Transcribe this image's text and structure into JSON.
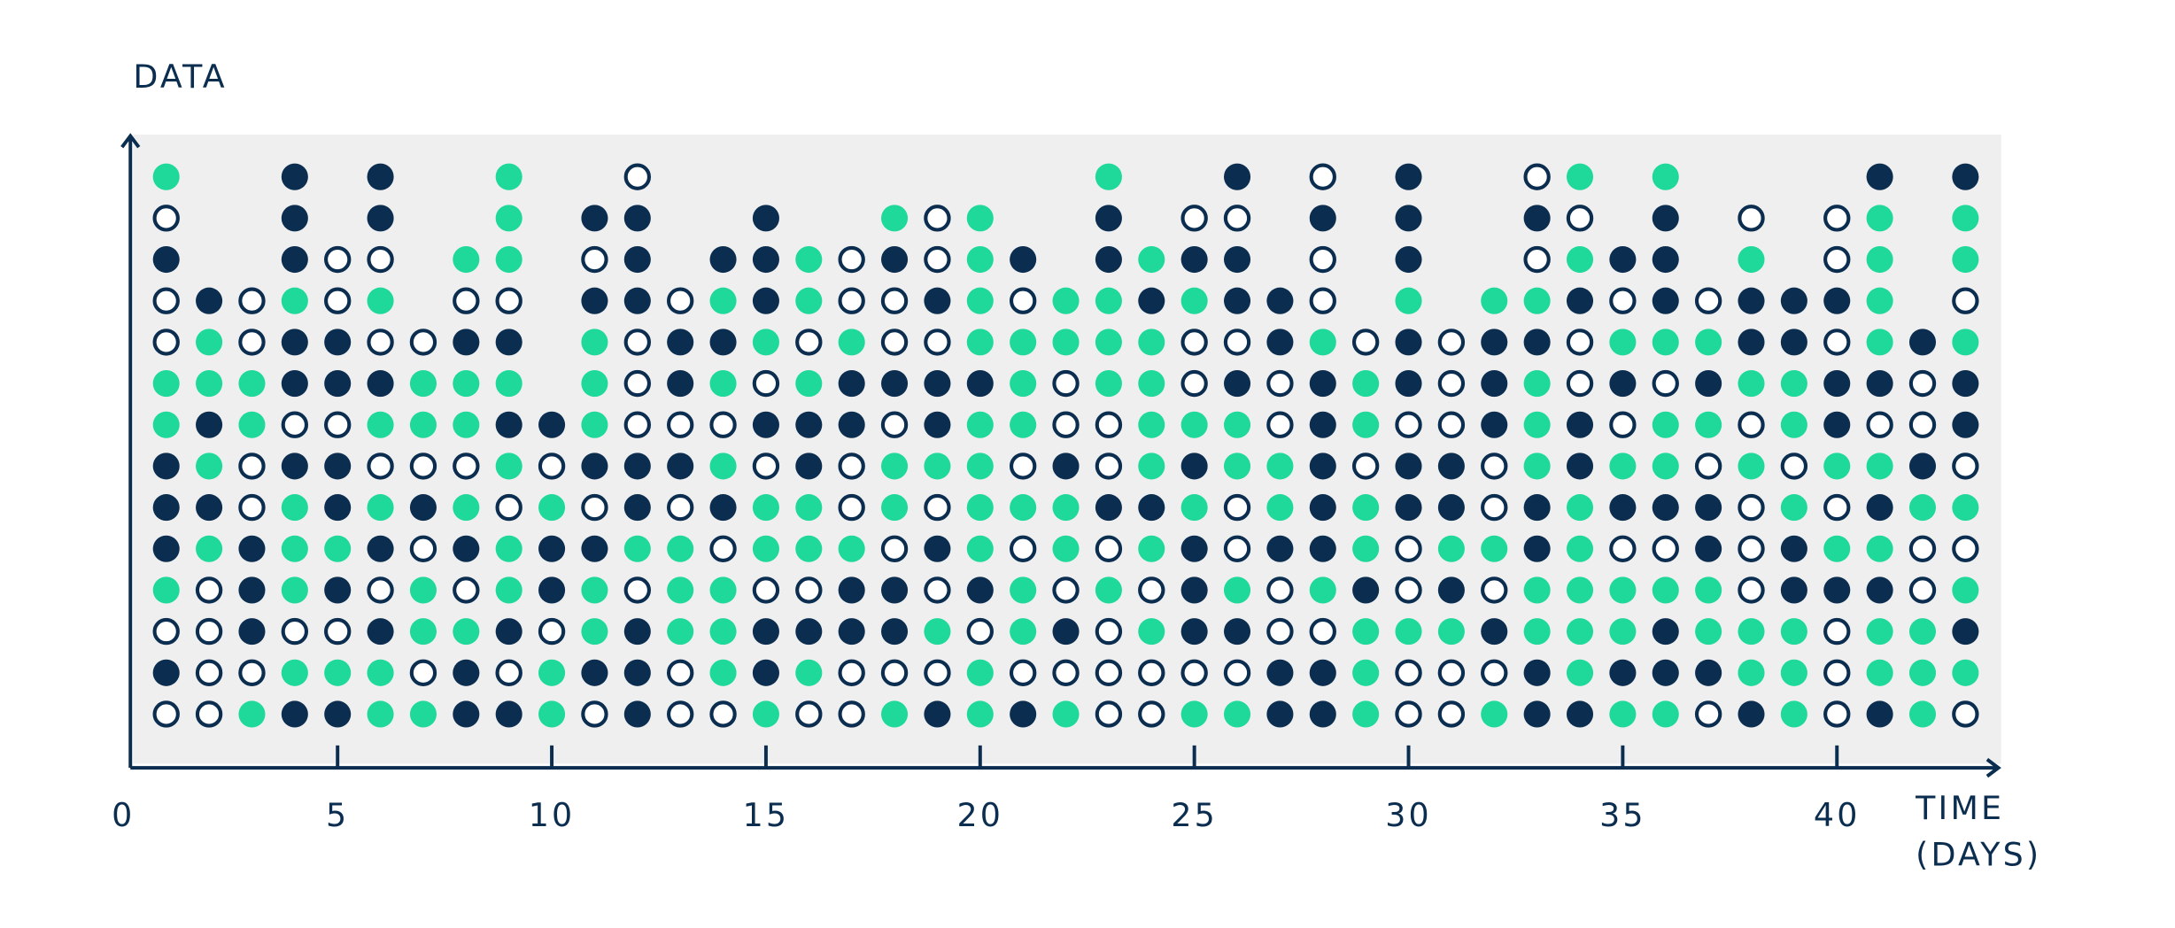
{
  "chart_data": {
    "type": "dot",
    "y_label": "DATA",
    "x_label": [
      "TIME",
      "(DAYS)"
    ],
    "xlim": [
      0,
      43.8
    ],
    "ylim": [
      -0.3,
      15
    ],
    "xticks": [
      0,
      5,
      10,
      15,
      20,
      25,
      30,
      35,
      40
    ],
    "background": "#efefef",
    "axis_color": "#0b2d4f",
    "series": [
      {
        "color": "#1ed99a",
        "filled": true,
        "x": [
          1,
          1,
          1,
          1,
          2,
          2,
          2,
          2,
          3,
          3,
          3,
          4,
          4,
          4,
          4,
          4,
          5,
          5,
          6,
          6,
          6,
          6,
          6,
          7,
          7,
          7,
          7,
          7,
          8,
          8,
          8,
          8,
          8,
          9,
          9,
          9,
          9,
          9,
          9,
          9,
          10,
          10,
          10,
          11,
          11,
          11,
          11,
          11,
          12,
          13,
          13,
          13,
          14,
          14,
          14,
          14,
          14,
          14,
          15,
          15,
          15,
          15,
          16,
          16,
          16,
          16,
          16,
          16,
          17,
          17,
          18,
          18,
          18,
          18,
          19,
          19,
          20,
          20,
          20,
          20,
          20,
          20,
          20,
          20,
          20,
          20,
          21,
          21,
          21,
          21,
          21,
          21,
          22,
          22,
          22,
          22,
          22,
          23,
          23,
          23,
          23,
          23,
          24,
          24,
          24,
          24,
          24,
          24,
          24,
          25,
          25,
          25,
          25,
          26,
          26,
          26,
          26,
          27,
          27,
          28,
          28,
          29,
          29,
          29,
          29,
          29,
          29,
          29,
          30,
          30,
          31,
          31,
          32,
          32,
          32,
          33,
          33,
          33,
          33,
          33,
          33,
          34,
          34,
          34,
          34,
          34,
          34,
          34,
          35,
          35,
          35,
          35,
          35,
          36,
          36,
          36,
          36,
          36,
          36,
          37,
          37,
          37,
          37,
          38,
          38,
          38,
          38,
          38,
          39,
          39,
          39,
          39,
          39,
          39,
          40,
          40,
          41,
          41,
          41,
          41,
          41,
          41,
          41,
          41,
          42,
          42,
          42,
          42,
          43,
          43,
          43,
          43,
          43,
          43
        ],
        "y": [
          4,
          8,
          9,
          14,
          5,
          7,
          9,
          10,
          1,
          8,
          9,
          2,
          4,
          5,
          6,
          11,
          2,
          5,
          1,
          2,
          6,
          8,
          11,
          1,
          3,
          4,
          8,
          9,
          3,
          6,
          8,
          9,
          12,
          4,
          5,
          7,
          9,
          12,
          13,
          14,
          1,
          2,
          6,
          3,
          4,
          8,
          9,
          10,
          5,
          3,
          4,
          5,
          2,
          3,
          4,
          7,
          9,
          11,
          1,
          5,
          6,
          10,
          2,
          5,
          6,
          9,
          11,
          12,
          5,
          10,
          1,
          6,
          7,
          13,
          3,
          7,
          1,
          2,
          5,
          6,
          7,
          8,
          10,
          11,
          12,
          13,
          3,
          4,
          6,
          8,
          9,
          10,
          1,
          5,
          6,
          10,
          11,
          4,
          9,
          10,
          11,
          14,
          3,
          5,
          7,
          8,
          9,
          10,
          12,
          1,
          6,
          8,
          11,
          1,
          4,
          7,
          8,
          6,
          7,
          4,
          10,
          1,
          2,
          3,
          5,
          6,
          8,
          9,
          3,
          11,
          3,
          5,
          1,
          5,
          11,
          3,
          4,
          7,
          8,
          9,
          11,
          2,
          3,
          4,
          5,
          6,
          12,
          14,
          1,
          3,
          4,
          7,
          10,
          1,
          4,
          7,
          8,
          10,
          14,
          3,
          4,
          8,
          10,
          2,
          3,
          7,
          9,
          12,
          1,
          2,
          3,
          6,
          8,
          9,
          5,
          7,
          2,
          3,
          5,
          7,
          10,
          11,
          12,
          13,
          1,
          2,
          3,
          6,
          2,
          4,
          6,
          10,
          12,
          13
        ]
      },
      {
        "color": "#0b2d4f",
        "filled": true,
        "x": [
          1,
          1,
          1,
          1,
          1,
          2,
          2,
          2,
          3,
          3,
          3,
          4,
          4,
          4,
          4,
          4,
          4,
          4,
          5,
          5,
          5,
          5,
          5,
          5,
          6,
          6,
          6,
          6,
          6,
          7,
          8,
          8,
          8,
          8,
          9,
          9,
          9,
          9,
          10,
          10,
          10,
          11,
          11,
          11,
          11,
          11,
          12,
          12,
          12,
          12,
          12,
          12,
          12,
          12,
          13,
          13,
          13,
          14,
          14,
          14,
          15,
          15,
          15,
          15,
          15,
          15,
          16,
          16,
          16,
          17,
          17,
          17,
          17,
          18,
          18,
          18,
          18,
          19,
          19,
          19,
          19,
          19,
          20,
          20,
          21,
          21,
          22,
          22,
          23,
          23,
          23,
          24,
          24,
          25,
          25,
          25,
          25,
          25,
          26,
          26,
          26,
          26,
          26,
          27,
          27,
          27,
          27,
          27,
          28,
          28,
          28,
          28,
          28,
          28,
          28,
          28,
          29,
          30,
          30,
          30,
          30,
          30,
          30,
          30,
          31,
          31,
          31,
          32,
          32,
          32,
          32,
          33,
          33,
          33,
          33,
          33,
          33,
          34,
          34,
          34,
          34,
          35,
          35,
          35,
          35,
          36,
          36,
          36,
          36,
          36,
          36,
          37,
          37,
          37,
          37,
          38,
          38,
          38,
          39,
          39,
          39,
          39,
          40,
          40,
          40,
          40,
          41,
          41,
          41,
          41,
          41,
          42,
          42,
          43,
          43,
          43,
          43
        ],
        "y": [
          2,
          5,
          6,
          7,
          12,
          6,
          8,
          11,
          3,
          4,
          5,
          1,
          7,
          9,
          10,
          12,
          13,
          14,
          1,
          4,
          6,
          7,
          9,
          10,
          3,
          5,
          9,
          13,
          14,
          6,
          1,
          2,
          5,
          10,
          1,
          3,
          8,
          10,
          4,
          5,
          8,
          2,
          5,
          7,
          11,
          13,
          1,
          2,
          3,
          6,
          7,
          11,
          12,
          13,
          7,
          9,
          10,
          6,
          10,
          12,
          2,
          3,
          8,
          11,
          12,
          13,
          3,
          7,
          8,
          3,
          4,
          8,
          9,
          3,
          4,
          9,
          12,
          1,
          5,
          8,
          9,
          11,
          4,
          9,
          1,
          12,
          3,
          7,
          6,
          12,
          13,
          6,
          11,
          3,
          4,
          5,
          7,
          12,
          3,
          9,
          11,
          12,
          14,
          1,
          2,
          5,
          10,
          11,
          1,
          2,
          5,
          6,
          7,
          8,
          9,
          13,
          4,
          6,
          7,
          9,
          10,
          12,
          13,
          14,
          4,
          6,
          7,
          3,
          8,
          9,
          10,
          1,
          2,
          5,
          6,
          10,
          13,
          1,
          7,
          8,
          11,
          2,
          6,
          9,
          12,
          2,
          3,
          6,
          11,
          12,
          13,
          2,
          5,
          6,
          9,
          1,
          10,
          11,
          4,
          5,
          10,
          11,
          4,
          8,
          9,
          11,
          1,
          4,
          6,
          9,
          14,
          7,
          10,
          3,
          8,
          9,
          14
        ]
      },
      {
        "color": "#0b2d4f",
        "filled": false,
        "x": [
          1,
          1,
          1,
          1,
          1,
          2,
          2,
          2,
          2,
          3,
          3,
          3,
          3,
          3,
          4,
          4,
          5,
          5,
          5,
          5,
          6,
          6,
          6,
          6,
          7,
          7,
          7,
          7,
          8,
          8,
          8,
          9,
          9,
          9,
          10,
          10,
          11,
          11,
          11,
          12,
          12,
          12,
          12,
          12,
          13,
          13,
          13,
          13,
          13,
          14,
          14,
          14,
          15,
          15,
          15,
          16,
          16,
          16,
          17,
          17,
          17,
          17,
          17,
          17,
          18,
          18,
          18,
          18,
          18,
          19,
          19,
          19,
          19,
          19,
          19,
          20,
          21,
          21,
          21,
          21,
          22,
          22,
          22,
          22,
          23,
          23,
          23,
          23,
          23,
          23,
          24,
          24,
          24,
          25,
          25,
          25,
          25,
          26,
          26,
          26,
          26,
          26,
          27,
          27,
          27,
          27,
          28,
          28,
          28,
          28,
          29,
          29,
          30,
          30,
          30,
          30,
          30,
          31,
          31,
          31,
          31,
          31,
          32,
          32,
          32,
          32,
          33,
          33,
          34,
          34,
          34,
          35,
          35,
          35,
          36,
          36,
          37,
          37,
          37,
          38,
          38,
          38,
          38,
          38,
          39,
          40,
          40,
          40,
          40,
          40,
          40,
          40,
          41,
          42,
          42,
          42,
          42,
          43,
          43,
          43,
          43
        ],
        "y": [
          1,
          3,
          10,
          11,
          13,
          1,
          2,
          3,
          4,
          2,
          6,
          7,
          10,
          11,
          3,
          8,
          3,
          8,
          11,
          12,
          4,
          7,
          10,
          12,
          2,
          5,
          7,
          10,
          4,
          7,
          11,
          2,
          6,
          11,
          3,
          7,
          1,
          6,
          12,
          4,
          8,
          9,
          10,
          14,
          1,
          2,
          6,
          8,
          11,
          1,
          5,
          8,
          4,
          7,
          9,
          1,
          4,
          10,
          1,
          2,
          6,
          7,
          11,
          12,
          2,
          5,
          8,
          10,
          11,
          2,
          4,
          6,
          10,
          12,
          13,
          3,
          2,
          5,
          7,
          11,
          2,
          4,
          8,
          9,
          1,
          2,
          3,
          5,
          7,
          8,
          1,
          2,
          4,
          2,
          9,
          10,
          13,
          2,
          5,
          6,
          10,
          13,
          3,
          4,
          8,
          9,
          3,
          11,
          12,
          14,
          7,
          10,
          1,
          2,
          4,
          5,
          8,
          1,
          2,
          8,
          9,
          10,
          2,
          4,
          6,
          7,
          12,
          14,
          9,
          10,
          13,
          5,
          8,
          11,
          5,
          9,
          1,
          7,
          11,
          4,
          5,
          6,
          8,
          13,
          7,
          1,
          2,
          3,
          6,
          10,
          12,
          13,
          8,
          4,
          5,
          8,
          9,
          1,
          5,
          7,
          11
        ]
      }
    ]
  }
}
